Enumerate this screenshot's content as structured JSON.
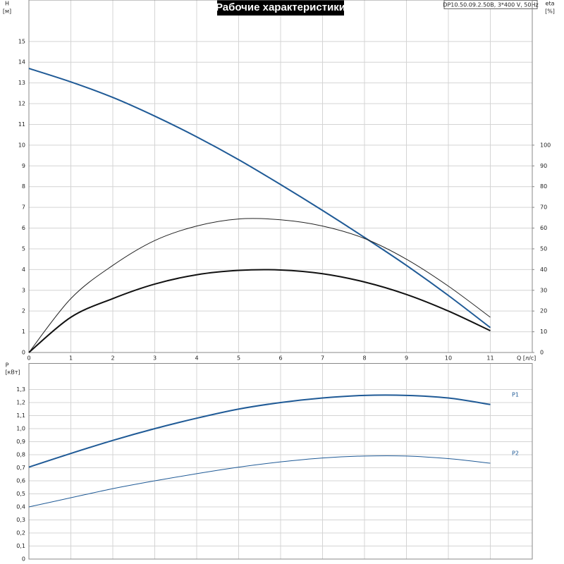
{
  "chart_data": [
    {
      "type": "line",
      "title": "Рабочие характеристики",
      "annotations": [
        "DP10.50.09.2.50B, 3*400 V, 50Hz"
      ],
      "xlabel": "Q [л/с]",
      "ylabel": "H",
      "yunit": "[м]",
      "y2label": "eta",
      "y2unit": "[%]",
      "x": [
        0,
        1,
        2,
        3,
        4,
        5,
        6,
        7,
        8,
        9,
        10,
        11
      ],
      "xlim": [
        0,
        12
      ],
      "xticks": [
        0,
        1,
        2,
        3,
        4,
        5,
        6,
        7,
        8,
        9,
        10,
        11
      ],
      "ylim": [
        0,
        17
      ],
      "yticks": [
        0,
        1,
        2,
        3,
        4,
        5,
        6,
        7,
        8,
        9,
        10,
        11,
        12,
        13,
        14,
        15
      ],
      "y2lim": [
        0,
        170
      ],
      "y2ticks": [
        0,
        10,
        20,
        30,
        40,
        50,
        60,
        70,
        80,
        90,
        100
      ],
      "grid": true,
      "series": [
        {
          "color": "#1f5a96",
          "line_width": 2,
          "values": [
            13.7,
            13.05,
            12.3,
            11.4,
            10.4,
            9.3,
            8.1,
            6.85,
            5.55,
            4.2,
            2.75,
            1.2
          ]
        },
        {
          "color": "#222222",
          "line_width": 1,
          "axis": "y2",
          "values": [
            0,
            26,
            42,
            54,
            61,
            64.4,
            64,
            61,
            55,
            45,
            32,
            17
          ]
        },
        {
          "color": "#111111",
          "line_width": 2,
          "axis": "y2",
          "values": [
            0,
            17,
            26,
            33,
            37.5,
            39.6,
            39.8,
            38,
            34,
            28,
            20,
            10.5
          ]
        }
      ]
    },
    {
      "type": "line",
      "ylabel": "P",
      "yunit": "[кВт]",
      "x": [
        0,
        1,
        2,
        3,
        4,
        5,
        6,
        7,
        8,
        9,
        10,
        11
      ],
      "xlim": [
        0,
        12
      ],
      "ylim": [
        0,
        1.5
      ],
      "yticks": [
        0,
        {
          "value": 0.1,
          "label": "0,1"
        },
        {
          "value": 0.2,
          "label": "0,2"
        },
        {
          "value": 0.3,
          "label": "0,3"
        },
        {
          "value": 0.4,
          "label": "0,4"
        },
        {
          "value": 0.5,
          "label": "0,5"
        },
        {
          "value": 0.6,
          "label": "0,6"
        },
        {
          "value": 0.7,
          "label": "0,7"
        },
        {
          "value": 0.8,
          "label": "0,8"
        },
        {
          "value": 0.9,
          "label": "0,9"
        },
        {
          "value": 1.0,
          "label": "1,0"
        },
        {
          "value": 1.1,
          "label": "1,1"
        },
        {
          "value": 1.2,
          "label": "1,2"
        },
        {
          "value": 1.3,
          "label": "1,3"
        }
      ],
      "grid": true,
      "series": [
        {
          "name": "P1",
          "color": "#1f5a96",
          "line_width": 2,
          "values": [
            0.705,
            0.81,
            0.91,
            1.0,
            1.08,
            1.15,
            1.2,
            1.235,
            1.255,
            1.255,
            1.235,
            1.185
          ]
        },
        {
          "name": "P2",
          "color": "#1f5a96",
          "line_width": 1,
          "values": [
            0.4,
            0.47,
            0.54,
            0.6,
            0.655,
            0.705,
            0.745,
            0.775,
            0.79,
            0.79,
            0.77,
            0.735
          ]
        }
      ]
    }
  ]
}
